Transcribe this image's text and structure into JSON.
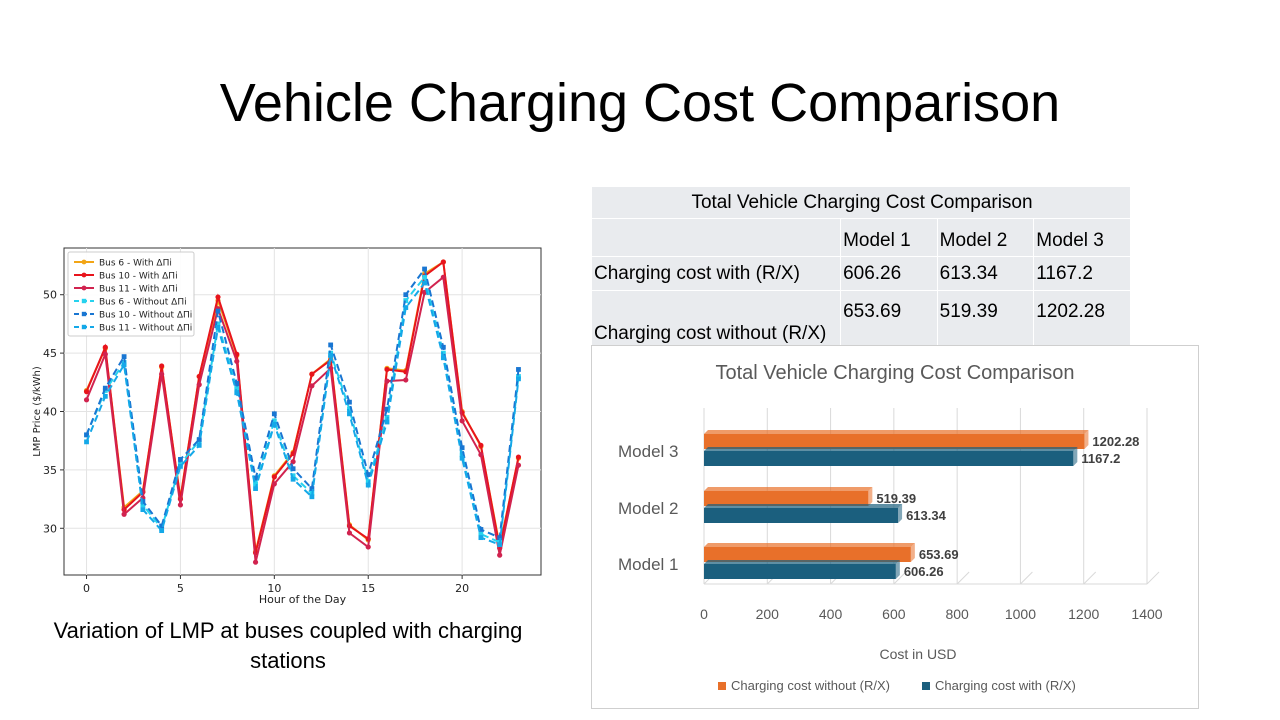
{
  "slide": {
    "title": "Vehicle Charging Cost Comparison",
    "caption": "Variation of LMP at buses coupled with charging stations"
  },
  "table": {
    "title": "Total Vehicle Charging Cost Comparison",
    "headers": [
      "",
      "Model 1",
      "Model 2",
      "Model 3"
    ],
    "rows": [
      {
        "label": "Charging cost with (R/X)",
        "values": [
          "606.26",
          "613.34",
          "1167.2"
        ]
      },
      {
        "label": "Charging cost without (R/X)",
        "values": [
          "653.69",
          "519.39",
          "1202.28"
        ]
      }
    ]
  },
  "chart_data": [
    {
      "type": "line",
      "title": "",
      "xlabel": "Hour of the Day",
      "ylabel": "LMP Price ($/kWh)",
      "xlim": [
        -1.2,
        24.2
      ],
      "ylim": [
        26,
        54
      ],
      "xticks": [
        0,
        5,
        10,
        15,
        20
      ],
      "yticks": [
        30,
        35,
        40,
        45,
        50
      ],
      "grid": true,
      "legend_position": "top-left",
      "x": [
        0,
        1,
        2,
        3,
        4,
        5,
        6,
        7,
        8,
        9,
        10,
        11,
        12,
        13,
        14,
        15,
        16,
        17,
        18,
        19,
        20,
        21,
        22,
        23
      ],
      "series": [
        {
          "name": "Bus 6 - With ΔΠi",
          "color": "#f2a516",
          "dashed": false,
          "marker": "circle",
          "values": [
            41.8,
            45.4,
            31.8,
            33.2,
            43.8,
            32.6,
            43.0,
            49.5,
            44.8,
            28.0,
            34.5,
            36.5,
            43.2,
            44.5,
            30.3,
            29.0,
            43.7,
            43.5,
            51.8,
            52.8,
            40.0,
            37.0,
            28.5,
            36.0
          ]
        },
        {
          "name": "Bus 10 - With ΔΠi",
          "color": "#e8141c",
          "dashed": false,
          "marker": "circle",
          "values": [
            41.7,
            45.5,
            31.6,
            33.1,
            43.9,
            32.5,
            43.0,
            49.8,
            44.9,
            27.9,
            34.4,
            36.4,
            43.2,
            44.4,
            30.2,
            29.1,
            43.6,
            43.4,
            51.6,
            52.8,
            39.9,
            37.1,
            28.3,
            36.1
          ]
        },
        {
          "name": "Bus 11 - With ΔΠi",
          "color": "#d1234f",
          "dashed": false,
          "marker": "circle",
          "values": [
            41.0,
            44.9,
            31.2,
            32.6,
            43.2,
            32.0,
            42.3,
            48.8,
            44.3,
            27.1,
            33.8,
            35.7,
            42.2,
            43.7,
            29.6,
            28.4,
            42.6,
            42.7,
            50.2,
            51.5,
            39.2,
            36.3,
            27.7,
            35.4
          ]
        },
        {
          "name": "Bus 6 - Without ΔΠi",
          "color": "#27d2ee",
          "dashed": true,
          "marker": "square",
          "values": [
            38.0,
            41.8,
            44.2,
            32.0,
            30.0,
            35.5,
            37.5,
            47.5,
            42.0,
            33.8,
            39.2,
            34.5,
            33.0,
            45.0,
            40.2,
            34.0,
            39.5,
            49.5,
            51.5,
            45.0,
            36.3,
            29.5,
            28.8,
            43.0
          ]
        },
        {
          "name": "Bus 10 - Without ΔΠi",
          "color": "#1976d2",
          "dashed": true,
          "marker": "square",
          "values": [
            38.0,
            42.0,
            44.7,
            32.3,
            30.2,
            35.9,
            37.6,
            48.6,
            42.4,
            34.3,
            39.8,
            35.1,
            33.4,
            45.7,
            40.8,
            34.6,
            40.2,
            50.0,
            52.2,
            45.5,
            36.9,
            29.9,
            29.2,
            43.6
          ]
        },
        {
          "name": "Bus 11 - Without ΔΠi",
          "color": "#14a8e8",
          "dashed": true,
          "marker": "square",
          "values": [
            37.4,
            41.3,
            44.0,
            31.6,
            29.8,
            35.3,
            37.1,
            47.2,
            41.6,
            33.4,
            38.9,
            34.2,
            32.7,
            44.8,
            39.8,
            33.7,
            39.1,
            48.9,
            51.0,
            44.6,
            36.0,
            29.2,
            28.6,
            42.8
          ]
        }
      ]
    },
    {
      "type": "bar",
      "orientation": "horizontal",
      "title": "Total Vehicle Charging Cost Comparison",
      "xlabel": "Cost in USD",
      "ylabel": "",
      "categories": [
        "Model 1",
        "Model 2",
        "Model 3"
      ],
      "xlim": [
        0,
        1400
      ],
      "xticks": [
        0,
        200,
        400,
        600,
        800,
        1000,
        1200,
        1400
      ],
      "grid": true,
      "legend_position": "bottom",
      "series": [
        {
          "name": "Charging cost without (R/X)",
          "color": "#e8702a",
          "values": [
            653.69,
            519.39,
            1202.28
          ]
        },
        {
          "name": "Charging cost with (R/X)",
          "color": "#1b5f7e",
          "values": [
            606.26,
            613.34,
            1167.2
          ]
        }
      ]
    }
  ]
}
